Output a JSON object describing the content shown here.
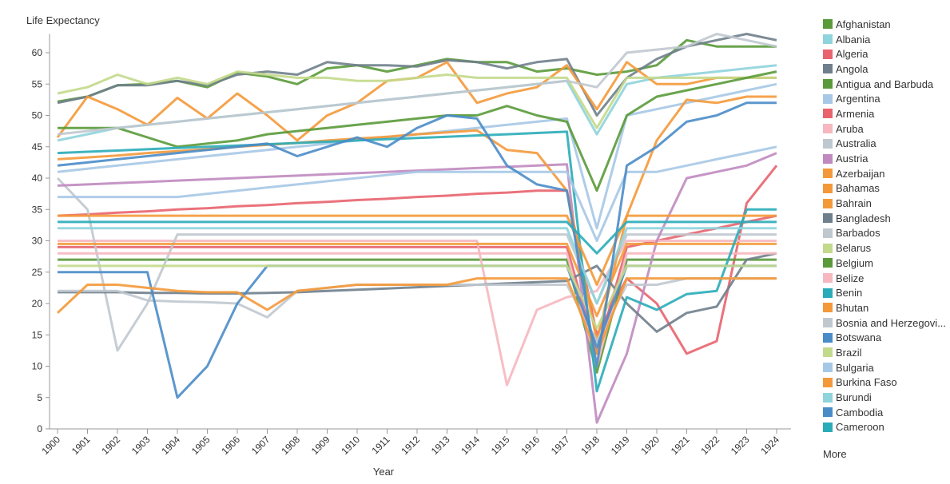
{
  "chart_data": {
    "type": "line",
    "title": "",
    "xlabel": "Year",
    "ylabel": "Life Expectancy",
    "x": [
      1900,
      1901,
      1902,
      1903,
      1904,
      1905,
      1906,
      1907,
      1908,
      1909,
      1910,
      1911,
      1912,
      1913,
      1914,
      1915,
      1916,
      1917,
      1918,
      1919,
      1920,
      1921,
      1922,
      1923,
      1924
    ],
    "xlim": [
      1900,
      1924
    ],
    "ylim": [
      0,
      63
    ],
    "yticks": [
      0,
      5,
      10,
      15,
      20,
      25,
      30,
      35,
      40,
      45,
      50,
      55,
      60
    ],
    "grid": false,
    "legend_placement": "right",
    "series": [
      {
        "name": "Afghanistan",
        "color": "#5a9a3a",
        "values": [
          52.2,
          53,
          54.8,
          55,
          55.5,
          54.5,
          56.8,
          56.2,
          55,
          57.5,
          58,
          57,
          58,
          59,
          58.5,
          58.5,
          57,
          57.5,
          56.5,
          57,
          58,
          62,
          61,
          61,
          61
        ]
      },
      {
        "name": "Albania",
        "color": "#8fd3dc",
        "values": [
          46,
          47,
          48,
          48.5,
          49,
          49.5,
          50,
          50.5,
          51,
          51.5,
          52,
          52.5,
          53,
          53.5,
          54,
          54.5,
          55,
          55.5,
          47,
          55,
          56,
          56.5,
          57,
          57.5,
          58
        ]
      },
      {
        "name": "Algeria",
        "color": "#e8636e",
        "values": [
          34,
          34.2,
          34.5,
          34.7,
          35,
          35.2,
          35.5,
          35.7,
          36,
          36.2,
          36.5,
          36.7,
          37,
          37.2,
          37.5,
          37.7,
          38,
          38,
          15,
          24,
          20,
          12,
          14,
          36,
          42
        ]
      },
      {
        "name": "Angola",
        "color": "#6f7f8c",
        "values": [
          52,
          53,
          54.8,
          54.8,
          55.5,
          54.8,
          56.5,
          57,
          56.5,
          58.5,
          58,
          58,
          57.8,
          58.8,
          58.5,
          57.5,
          58.5,
          59,
          50,
          56,
          59,
          61,
          62,
          63,
          62
        ]
      },
      {
        "name": "Antigua and Barbuda",
        "color": "#5a9a3a",
        "values": [
          27,
          27,
          27,
          27,
          27,
          27,
          27,
          27,
          27,
          27,
          27,
          27,
          27,
          27,
          27,
          27,
          27,
          27,
          9,
          27,
          27,
          27,
          27,
          27,
          27
        ]
      },
      {
        "name": "Argentina",
        "color": "#a6c8e6",
        "values": [
          41,
          41.5,
          42,
          42.5,
          43,
          43.5,
          44,
          44.5,
          45,
          45.5,
          46,
          46.5,
          47,
          47.5,
          48,
          48.5,
          49,
          49.5,
          32,
          50,
          51,
          52,
          53,
          54,
          55
        ]
      },
      {
        "name": "Armenia",
        "color": "#e8636e",
        "values": [
          29,
          29,
          29,
          29,
          29,
          29,
          29,
          29,
          29,
          29,
          29,
          29,
          29,
          29,
          29,
          29,
          29,
          29,
          12,
          29,
          30,
          31,
          32,
          33,
          34
        ]
      },
      {
        "name": "Aruba",
        "color": "#f6b7bf",
        "values": [
          30,
          30,
          30,
          30,
          30,
          30,
          30,
          30,
          30,
          30,
          30,
          30,
          30,
          30,
          30,
          7,
          19,
          21,
          22,
          30,
          30,
          30,
          30,
          30,
          30
        ]
      },
      {
        "name": "Australia",
        "color": "#c0c8cf",
        "values": [
          40,
          35,
          12.5,
          20,
          31,
          31,
          31,
          31,
          31,
          31,
          31,
          31,
          31,
          31,
          31,
          31,
          31,
          31,
          20,
          31,
          31,
          31,
          31,
          31,
          31
        ]
      },
      {
        "name": "Austria",
        "color": "#c08ac0",
        "values": [
          38.8,
          39,
          39.2,
          39.4,
          39.6,
          39.8,
          40,
          40.2,
          40.4,
          40.6,
          40.8,
          41,
          41.2,
          41.4,
          41.6,
          41.8,
          42,
          42.2,
          1,
          12,
          30,
          40,
          41,
          42,
          44
        ]
      },
      {
        "name": "Azerbaijan",
        "color": "#f4993a",
        "values": [
          46.5,
          53,
          51,
          48.5,
          52.8,
          49.5,
          53.5,
          50,
          46,
          50,
          52,
          55.5,
          56,
          58.5,
          52,
          53.5,
          54.5,
          58,
          51,
          58.5,
          55,
          55,
          56,
          56,
          56
        ]
      },
      {
        "name": "Bahamas",
        "color": "#f4993a",
        "values": [
          43,
          43.3,
          43.6,
          44,
          44.3,
          44.6,
          45,
          45.3,
          45.6,
          46,
          46.3,
          46.6,
          47,
          47.3,
          47.6,
          44.5,
          44,
          38,
          14,
          34,
          46,
          52.5,
          52,
          53,
          53
        ]
      },
      {
        "name": "Bahrain",
        "color": "#f4993a",
        "values": [
          29.5,
          29.5,
          29.5,
          29.5,
          29.5,
          29.5,
          29.5,
          29.5,
          29.5,
          29.5,
          29.5,
          29.5,
          29.5,
          29.5,
          29.5,
          29.5,
          29.5,
          29.5,
          18,
          29.5,
          29.5,
          29.5,
          29.5,
          29.5,
          29.5
        ]
      },
      {
        "name": "Bangladesh",
        "color": "#6f7f8c",
        "values": [
          21.8,
          21.8,
          21.8,
          21.7,
          21.7,
          21.6,
          21.6,
          21.7,
          21.8,
          22,
          22.2,
          22.4,
          22.6,
          22.8,
          23,
          23.2,
          23.4,
          23.6,
          26,
          20,
          15.5,
          18.5,
          19.5,
          27,
          28
        ]
      },
      {
        "name": "Barbados",
        "color": "#c0c8cf",
        "values": [
          22,
          22,
          22,
          20.5,
          20.3,
          20.2,
          20,
          17.8,
          22,
          22.5,
          23,
          23,
          23,
          23,
          23,
          23,
          23,
          23,
          14,
          23,
          23,
          24,
          24,
          24,
          24
        ]
      },
      {
        "name": "Belarus",
        "color": "#c3d98b",
        "values": [
          53.5,
          54.5,
          56.5,
          55,
          56,
          55,
          57,
          56.5,
          56,
          56,
          55.5,
          55.5,
          56,
          56.5,
          56,
          56,
          56,
          56,
          48,
          56,
          56,
          56,
          56,
          56,
          56
        ]
      },
      {
        "name": "Belgium",
        "color": "#5a9a3a",
        "values": [
          48,
          48,
          48,
          46.5,
          45,
          45.5,
          46,
          47,
          47.5,
          48,
          48.5,
          49,
          49.5,
          50,
          50,
          51.5,
          50,
          49,
          38,
          50,
          53,
          54,
          55,
          56,
          57
        ]
      },
      {
        "name": "Belize",
        "color": "#f6b7bf",
        "values": [
          28,
          28,
          28,
          28,
          28,
          28,
          28,
          28,
          28,
          28,
          28,
          28,
          28,
          28,
          28,
          28,
          28,
          28,
          10,
          28,
          28,
          28,
          28,
          28,
          28
        ]
      },
      {
        "name": "Benin",
        "color": "#2aacb8",
        "values": [
          44,
          44.2,
          44.4,
          44.6,
          44.8,
          45,
          45.2,
          45.4,
          45.6,
          45.8,
          46,
          46.2,
          46.4,
          46.6,
          46.8,
          47,
          47.2,
          47.4,
          6,
          21,
          19,
          21.5,
          22,
          35,
          35
        ]
      },
      {
        "name": "Bhutan",
        "color": "#f4993a",
        "values": [
          34,
          34,
          34,
          34,
          34,
          34,
          34,
          34,
          34,
          34,
          34,
          34,
          34,
          34,
          34,
          34,
          34,
          34,
          23,
          34,
          34,
          34,
          34,
          34,
          34
        ]
      },
      {
        "name": "Bosnia and Herzegovi...",
        "color": "#c0c8cf",
        "values": [
          47,
          47.5,
          48,
          48.5,
          49,
          49.5,
          50,
          50.5,
          51,
          51.5,
          52,
          52.5,
          53,
          53.5,
          54,
          54.5,
          55,
          55.5,
          54.5,
          60,
          60.5,
          61,
          63,
          62,
          61
        ]
      },
      {
        "name": "Botswana",
        "color": "#4a8cc8",
        "values": [
          25,
          25,
          25,
          25,
          5,
          10,
          20,
          26,
          26,
          26,
          26,
          26,
          26,
          26,
          26,
          26,
          26,
          26,
          13,
          26,
          26,
          26,
          26,
          26,
          26
        ]
      },
      {
        "name": "Brazil",
        "color": "#c3d98b",
        "values": [
          26,
          26,
          26,
          26,
          26,
          26,
          26,
          26,
          26,
          26,
          26,
          26,
          26,
          26,
          26,
          26,
          26,
          26,
          16,
          26,
          26,
          26,
          26,
          26,
          26
        ]
      },
      {
        "name": "Bulgaria",
        "color": "#a6c8e6",
        "values": [
          37,
          37,
          37,
          37,
          37,
          37.5,
          38,
          38.5,
          39,
          39.5,
          40,
          40.5,
          41,
          41,
          41,
          41,
          41,
          41,
          30,
          41,
          41,
          42,
          43,
          44,
          45
        ]
      },
      {
        "name": "Burkina Faso",
        "color": "#f4993a",
        "values": [
          18.5,
          23,
          23,
          22.5,
          22,
          21.8,
          21.8,
          19,
          22,
          22.5,
          23,
          23,
          23,
          23,
          24,
          24,
          24,
          24,
          12,
          24,
          24,
          24,
          24,
          24,
          24
        ]
      },
      {
        "name": "Burundi",
        "color": "#8fd3dc",
        "values": [
          32,
          32,
          32,
          32,
          32,
          32,
          32,
          32,
          32,
          32,
          32,
          32,
          32,
          32,
          32,
          32,
          32,
          32,
          20,
          32,
          32,
          32,
          32,
          32,
          32
        ]
      },
      {
        "name": "Cambodia",
        "color": "#4a8cc8",
        "values": [
          42,
          42.5,
          43,
          43.5,
          44,
          44.5,
          45,
          45.5,
          43.5,
          45,
          46.5,
          45,
          48,
          50,
          49.5,
          42,
          39,
          38,
          10,
          42,
          45,
          49,
          50,
          52,
          52
        ]
      },
      {
        "name": "Cameroon",
        "color": "#2aacb8",
        "values": [
          33,
          33,
          33,
          33,
          33,
          33,
          33,
          33,
          33,
          33,
          33,
          33,
          33,
          33,
          33,
          33,
          33,
          33,
          28,
          33,
          33,
          33,
          33,
          33,
          33
        ]
      }
    ]
  },
  "legend": {
    "more_label": "More"
  }
}
